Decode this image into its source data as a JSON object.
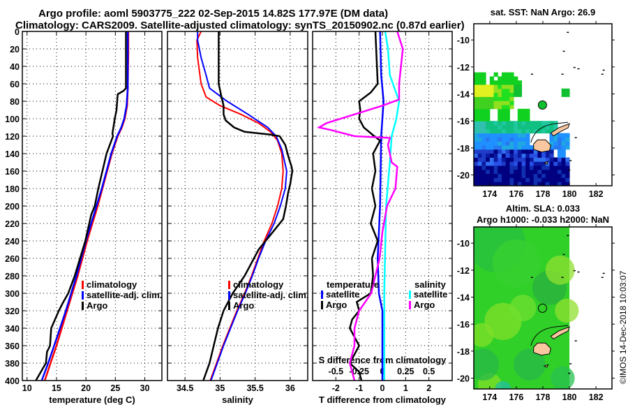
{
  "header": {
    "title_line1": "Argo profile: aoml 5903775_222 02-Sep-2015 14.82S 177.97E (DM data)",
    "title_line2": "Climatology: CARS2009. Satellite-adjusted climatology: synTS_20150902.nc (0.87d earlier)"
  },
  "footer": {
    "credit": "©IMOS 14-Dec-2018 10:03:07"
  },
  "colors": {
    "climatology": "#ff0000",
    "satellite": "#0000ff",
    "argo": "#000000",
    "salinity_satellite": "#00ffff",
    "salinity_argo": "#ff00ff",
    "land": "#fac8a0"
  },
  "chart_data": [
    {
      "type": "line",
      "id": "temperature-profile",
      "xlabel": "temperature (deg C)",
      "ylabel": "",
      "xlim": [
        9.2,
        32.9
      ],
      "ylim": [
        400,
        0
      ],
      "xticks": [
        10,
        15,
        20,
        25,
        30
      ],
      "yticks": [
        0,
        20,
        40,
        60,
        80,
        100,
        120,
        140,
        160,
        180,
        200,
        220,
        240,
        260,
        280,
        300,
        320,
        340,
        360,
        380,
        400
      ],
      "grid": true,
      "legend": {
        "placement": "middle-right",
        "entries": [
          "climatology",
          "satellite-adj. clim.",
          "Argo"
        ]
      },
      "series": [
        {
          "name": "climatology",
          "color_key": "climatology",
          "depth": [
            0,
            25,
            65,
            85,
            100,
            110,
            120,
            140,
            160,
            180,
            200,
            220,
            240,
            260,
            280,
            300,
            320,
            340,
            360,
            380,
            400
          ],
          "values": [
            27.2,
            27.2,
            27.1,
            27.0,
            26.6,
            26.1,
            25.4,
            24.4,
            23.6,
            22.8,
            22.0,
            21.1,
            20.2,
            19.4,
            18.6,
            17.7,
            16.8,
            15.9,
            15.0,
            14.0,
            13.0
          ]
        },
        {
          "name": "satellite-adj. clim.",
          "color_key": "satellite",
          "depth": [
            0,
            25,
            65,
            85,
            100,
            110,
            120,
            140,
            160,
            180,
            200,
            220,
            240,
            260,
            280,
            300,
            320,
            340,
            360,
            380,
            400
          ],
          "values": [
            27.1,
            27.1,
            27.1,
            26.9,
            26.5,
            26.0,
            25.3,
            24.3,
            23.5,
            22.7,
            21.8,
            20.9,
            20.0,
            19.2,
            18.4,
            17.5,
            16.6,
            15.6,
            14.6,
            13.6,
            12.5
          ]
        },
        {
          "name": "Argo",
          "color_key": "argo",
          "depth": [
            0,
            65,
            68,
            72,
            90,
            100,
            117,
            120,
            140,
            160,
            180,
            200,
            210,
            240,
            280,
            300,
            312,
            320,
            340,
            360,
            367,
            380,
            400
          ],
          "values": [
            26.8,
            26.8,
            26.4,
            25.4,
            25.2,
            24.9,
            24.5,
            24.6,
            23.5,
            22.8,
            22.1,
            21.5,
            20.9,
            19.9,
            18.1,
            17.0,
            16.0,
            15.4,
            14.1,
            13.9,
            13.4,
            13.2,
            11.5
          ]
        }
      ]
    },
    {
      "type": "line",
      "id": "salinity-profile",
      "xlabel": "salinity",
      "ylabel": "",
      "xlim": [
        34.25,
        36.25
      ],
      "ylim": [
        400,
        0
      ],
      "xticks": [
        34.5,
        35,
        35.5,
        36
      ],
      "grid": true,
      "legend": {
        "placement": "middle-right",
        "entries": [
          "climatology",
          "satellite-adj. clim.",
          "Argo"
        ]
      },
      "series": [
        {
          "name": "climatology",
          "color_key": "climatology",
          "depth": [
            0,
            10,
            30,
            60,
            75,
            85,
            95,
            105,
            115,
            125,
            140,
            160,
            180,
            200,
            220,
            240,
            260,
            280,
            300,
            320,
            340,
            360,
            380,
            400
          ],
          "values": [
            34.73,
            34.67,
            34.68,
            34.73,
            34.8,
            35.0,
            35.3,
            35.55,
            35.72,
            35.82,
            35.88,
            35.9,
            35.88,
            35.82,
            35.74,
            35.63,
            35.54,
            35.45,
            35.35,
            35.24,
            35.14,
            35.04,
            34.95,
            34.86
          ]
        },
        {
          "name": "satellite-adj. clim.",
          "color_key": "satellite",
          "depth": [
            0,
            10,
            30,
            50,
            65,
            80,
            95,
            110,
            120,
            135,
            160,
            180,
            200,
            220,
            240,
            260,
            280,
            300,
            320,
            340,
            360,
            380,
            400
          ],
          "values": [
            34.68,
            34.68,
            34.73,
            34.8,
            34.85,
            35.1,
            35.4,
            35.68,
            35.8,
            35.88,
            35.95,
            35.93,
            35.86,
            35.77,
            35.65,
            35.55,
            35.46,
            35.36,
            35.25,
            35.15,
            35.05,
            34.96,
            34.87
          ]
        },
        {
          "name": "Argo",
          "color_key": "argo",
          "depth": [
            0,
            60,
            75,
            85,
            95,
            102,
            110,
            115,
            118,
            120,
            130,
            145,
            155,
            160,
            175,
            185,
            200,
            215,
            225,
            250,
            280,
            300,
            320,
            340,
            360,
            380,
            400
          ],
          "values": [
            34.98,
            34.98,
            35.02,
            35.05,
            35.05,
            35.08,
            35.2,
            35.35,
            35.7,
            35.85,
            35.93,
            35.98,
            36.02,
            36.03,
            36.0,
            35.97,
            35.94,
            35.9,
            35.8,
            35.55,
            35.35,
            35.18,
            35.05,
            34.97,
            34.91,
            34.85,
            34.76
          ]
        }
      ]
    },
    {
      "type": "line",
      "id": "difference-profile",
      "xlabel": "T difference from climatology",
      "x2label": "S difference from climatology",
      "ylabel": "",
      "xlim": [
        -3,
        3
      ],
      "x2lim": [
        -0.75,
        0.75
      ],
      "ylim": [
        400,
        0
      ],
      "xticks": [
        -2,
        -1,
        0,
        1,
        2
      ],
      "x2ticks": [
        -0.5,
        -0.25,
        0,
        0.25,
        0.5
      ],
      "x2ticklabels": [
        "-0.5",
        "-0.25",
        "0",
        "0.25",
        "0.5"
      ],
      "grid": true,
      "legend": {
        "placement": "middle",
        "temperature_title": "temperature",
        "salinity_title": "salinity",
        "entries": [
          "satellite",
          "Argo",
          "satellite",
          "Argo"
        ]
      },
      "series": [
        {
          "name": "temperature satellite",
          "color_key": "satellite",
          "axis": "T",
          "depth": [
            0,
            50,
            80,
            100,
            120,
            200,
            260,
            300,
            320,
            340,
            400
          ],
          "values": [
            -0.1,
            -0.05,
            0.05,
            0.0,
            -0.05,
            -0.1,
            -0.2,
            -0.15,
            0.0,
            0.0,
            0.0
          ]
        },
        {
          "name": "temperature Argo",
          "color_key": "argo",
          "axis": "T",
          "depth": [
            0,
            60,
            70,
            80,
            90,
            100,
            110,
            120,
            125,
            140,
            160,
            180,
            200,
            220,
            240,
            260,
            280,
            300,
            310,
            320,
            330,
            340,
            360,
            380,
            390,
            400
          ],
          "values": [
            -0.3,
            -0.2,
            -0.5,
            -1.0,
            -0.95,
            -1.0,
            -0.8,
            -0.35,
            -0.1,
            -0.4,
            -0.3,
            -0.45,
            -0.3,
            -0.5,
            -0.2,
            -0.45,
            -0.4,
            -0.5,
            -1.1,
            -1.0,
            -1.3,
            -1.4,
            -1.0,
            -1.4,
            -1.0,
            -0.9
          ]
        },
        {
          "name": "salinity satellite",
          "color_key": "salinity_satellite",
          "axis": "S",
          "depth": [
            0,
            20,
            50,
            80,
            100,
            120,
            150,
            200,
            250,
            300,
            400
          ],
          "values": [
            0.03,
            0.06,
            0.08,
            0.18,
            0.15,
            0.1,
            0.08,
            0.04,
            0.03,
            0.02,
            0.02
          ]
        },
        {
          "name": "salinity Argo",
          "color_key": "salinity_argo",
          "axis": "S",
          "depth": [
            0,
            20,
            60,
            78,
            85,
            95,
            105,
            110,
            113,
            120,
            122,
            130,
            150,
            155,
            180,
            200,
            230,
            260,
            300,
            320,
            340,
            360,
            380,
            400
          ],
          "values": [
            0.16,
            0.22,
            0.18,
            0.18,
            0.0,
            -0.3,
            -0.6,
            -0.68,
            -0.55,
            -0.3,
            0.08,
            0.06,
            0.1,
            0.16,
            0.14,
            0.05,
            0.0,
            -0.03,
            -0.12,
            -0.25,
            -0.3,
            -0.3,
            -0.35,
            -0.3
          ]
        }
      ]
    },
    {
      "type": "heatmap",
      "id": "sst-map",
      "title": "sat. SST: NaN Argo: 26.9",
      "xlim": [
        172.8,
        183.2
      ],
      "ylim": [
        -20.8,
        -8.8
      ],
      "xticks": [
        174,
        176,
        178,
        180,
        182
      ],
      "yticks": [
        -10,
        -12,
        -14,
        -16,
        -18,
        -20
      ],
      "argo_position": {
        "lon": 177.97,
        "lat": -14.82
      }
    },
    {
      "type": "heatmap",
      "id": "sla-map",
      "title": "Altim. SLA: 0.033",
      "subtitle": "Argo h1000: -0.033 h2000: NaN",
      "xlim": [
        172.8,
        183.2
      ],
      "ylim": [
        -20.8,
        -8.8
      ],
      "xticks": [
        174,
        176,
        178,
        180,
        182
      ],
      "yticks": [
        -10,
        -12,
        -14,
        -16,
        -18,
        -20
      ],
      "argo_position": {
        "lon": 177.97,
        "lat": -14.82
      }
    }
  ]
}
